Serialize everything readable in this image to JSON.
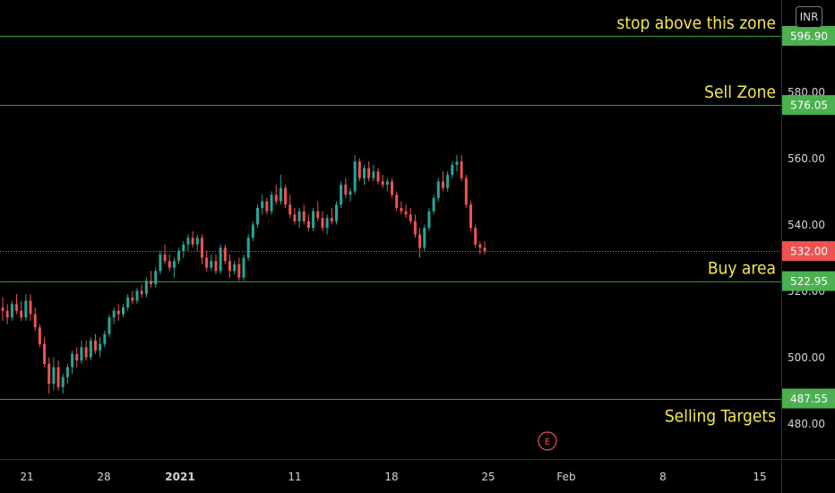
{
  "chart_data": {
    "type": "candlestick",
    "currency": "INR",
    "y_ticks": [
      480,
      500,
      520,
      540,
      560,
      580
    ],
    "y_tick_labels": [
      "480.00",
      "500.00",
      "520.00",
      "540.00",
      "560.00",
      "580.00"
    ],
    "x_ticks": [
      {
        "label": "21",
        "bold": false
      },
      {
        "label": "28",
        "bold": false
      },
      {
        "label": "2021",
        "bold": true
      },
      {
        "label": "11",
        "bold": false
      },
      {
        "label": "18",
        "bold": false
      },
      {
        "label": "25",
        "bold": false
      },
      {
        "label": "Feb",
        "bold": false
      },
      {
        "label": "8",
        "bold": false
      },
      {
        "label": "15",
        "bold": false
      }
    ],
    "last_price": {
      "value": 532.0,
      "label": "532.00",
      "color": "#ef5350"
    },
    "levels": [
      {
        "value": 596.9,
        "label": "596.90",
        "annotation": "stop above this zone"
      },
      {
        "value": 576.05,
        "label": "576.05",
        "annotation": "Sell Zone"
      },
      {
        "value": 522.95,
        "label": "522.95",
        "annotation": "Buy area"
      },
      {
        "value": 487.55,
        "label": "487.55",
        "annotation": "Selling Targets"
      }
    ],
    "level_line_color": "#4caf50",
    "badge_color": "#4caf50",
    "annotation_color": "#f5e94a",
    "up_color": "#26a69a",
    "down_color": "#ef5350",
    "event_marker": "E",
    "candles": [
      {
        "o": 515,
        "h": 518,
        "l": 511,
        "c": 514
      },
      {
        "o": 514,
        "h": 516,
        "l": 510,
        "c": 512
      },
      {
        "o": 512,
        "h": 517,
        "l": 511,
        "c": 516
      },
      {
        "o": 516,
        "h": 519,
        "l": 513,
        "c": 514
      },
      {
        "o": 514,
        "h": 517,
        "l": 511,
        "c": 512
      },
      {
        "o": 512,
        "h": 519,
        "l": 511,
        "c": 517
      },
      {
        "o": 517,
        "h": 519,
        "l": 511,
        "c": 513
      },
      {
        "o": 513,
        "h": 515,
        "l": 508,
        "c": 509
      },
      {
        "o": 509,
        "h": 510,
        "l": 503,
        "c": 504
      },
      {
        "o": 504,
        "h": 506,
        "l": 497,
        "c": 498
      },
      {
        "o": 498,
        "h": 500,
        "l": 489,
        "c": 492
      },
      {
        "o": 492,
        "h": 500,
        "l": 490,
        "c": 497
      },
      {
        "o": 497,
        "h": 499,
        "l": 490,
        "c": 491
      },
      {
        "o": 491,
        "h": 495,
        "l": 489,
        "c": 494
      },
      {
        "o": 494,
        "h": 498,
        "l": 492,
        "c": 497
      },
      {
        "o": 497,
        "h": 502,
        "l": 495,
        "c": 501
      },
      {
        "o": 501,
        "h": 503,
        "l": 497,
        "c": 499
      },
      {
        "o": 499,
        "h": 505,
        "l": 498,
        "c": 503
      },
      {
        "o": 503,
        "h": 505,
        "l": 499,
        "c": 500
      },
      {
        "o": 500,
        "h": 506,
        "l": 499,
        "c": 505
      },
      {
        "o": 505,
        "h": 507,
        "l": 501,
        "c": 502
      },
      {
        "o": 502,
        "h": 506,
        "l": 500,
        "c": 504
      },
      {
        "o": 504,
        "h": 508,
        "l": 503,
        "c": 507
      },
      {
        "o": 507,
        "h": 513,
        "l": 506,
        "c": 512
      },
      {
        "o": 512,
        "h": 515,
        "l": 510,
        "c": 514
      },
      {
        "o": 514,
        "h": 516,
        "l": 511,
        "c": 513
      },
      {
        "o": 513,
        "h": 516,
        "l": 512,
        "c": 515
      },
      {
        "o": 515,
        "h": 519,
        "l": 514,
        "c": 518
      },
      {
        "o": 518,
        "h": 520,
        "l": 516,
        "c": 517
      },
      {
        "o": 517,
        "h": 521,
        "l": 516,
        "c": 520
      },
      {
        "o": 520,
        "h": 522,
        "l": 518,
        "c": 519
      },
      {
        "o": 519,
        "h": 524,
        "l": 518,
        "c": 523
      },
      {
        "o": 523,
        "h": 526,
        "l": 521,
        "c": 522
      },
      {
        "o": 522,
        "h": 527,
        "l": 521,
        "c": 526
      },
      {
        "o": 526,
        "h": 532,
        "l": 525,
        "c": 531
      },
      {
        "o": 531,
        "h": 534,
        "l": 528,
        "c": 529
      },
      {
        "o": 529,
        "h": 531,
        "l": 526,
        "c": 527
      },
      {
        "o": 527,
        "h": 530,
        "l": 524,
        "c": 529
      },
      {
        "o": 529,
        "h": 533,
        "l": 528,
        "c": 532
      },
      {
        "o": 532,
        "h": 535,
        "l": 530,
        "c": 534
      },
      {
        "o": 534,
        "h": 537,
        "l": 532,
        "c": 536
      },
      {
        "o": 536,
        "h": 538,
        "l": 533,
        "c": 534
      },
      {
        "o": 534,
        "h": 537,
        "l": 532,
        "c": 536
      },
      {
        "o": 536,
        "h": 537,
        "l": 528,
        "c": 530
      },
      {
        "o": 530,
        "h": 532,
        "l": 526,
        "c": 527
      },
      {
        "o": 527,
        "h": 531,
        "l": 526,
        "c": 529
      },
      {
        "o": 529,
        "h": 531,
        "l": 525,
        "c": 526
      },
      {
        "o": 526,
        "h": 534,
        "l": 525,
        "c": 533
      },
      {
        "o": 533,
        "h": 534,
        "l": 528,
        "c": 529
      },
      {
        "o": 529,
        "h": 531,
        "l": 524,
        "c": 526
      },
      {
        "o": 526,
        "h": 529,
        "l": 525,
        "c": 528
      },
      {
        "o": 528,
        "h": 530,
        "l": 523,
        "c": 524
      },
      {
        "o": 524,
        "h": 531,
        "l": 523,
        "c": 530
      },
      {
        "o": 530,
        "h": 537,
        "l": 529,
        "c": 536
      },
      {
        "o": 536,
        "h": 541,
        "l": 535,
        "c": 540
      },
      {
        "o": 540,
        "h": 546,
        "l": 539,
        "c": 545
      },
      {
        "o": 545,
        "h": 549,
        "l": 543,
        "c": 547
      },
      {
        "o": 547,
        "h": 548,
        "l": 543,
        "c": 544
      },
      {
        "o": 544,
        "h": 550,
        "l": 543,
        "c": 549
      },
      {
        "o": 549,
        "h": 552,
        "l": 546,
        "c": 547
      },
      {
        "o": 547,
        "h": 555,
        "l": 546,
        "c": 551
      },
      {
        "o": 551,
        "h": 552,
        "l": 545,
        "c": 546
      },
      {
        "o": 546,
        "h": 549,
        "l": 542,
        "c": 543
      },
      {
        "o": 543,
        "h": 545,
        "l": 540,
        "c": 541
      },
      {
        "o": 541,
        "h": 545,
        "l": 539,
        "c": 544
      },
      {
        "o": 544,
        "h": 546,
        "l": 540,
        "c": 541
      },
      {
        "o": 541,
        "h": 543,
        "l": 538,
        "c": 539
      },
      {
        "o": 539,
        "h": 545,
        "l": 538,
        "c": 544
      },
      {
        "o": 544,
        "h": 547,
        "l": 541,
        "c": 542
      },
      {
        "o": 542,
        "h": 544,
        "l": 538,
        "c": 539
      },
      {
        "o": 539,
        "h": 543,
        "l": 537,
        "c": 542
      },
      {
        "o": 542,
        "h": 545,
        "l": 540,
        "c": 541
      },
      {
        "o": 541,
        "h": 547,
        "l": 540,
        "c": 546
      },
      {
        "o": 546,
        "h": 553,
        "l": 545,
        "c": 552
      },
      {
        "o": 552,
        "h": 554,
        "l": 548,
        "c": 549
      },
      {
        "o": 549,
        "h": 551,
        "l": 547,
        "c": 550
      },
      {
        "o": 550,
        "h": 561,
        "l": 549,
        "c": 559
      },
      {
        "o": 559,
        "h": 560,
        "l": 553,
        "c": 554
      },
      {
        "o": 554,
        "h": 558,
        "l": 552,
        "c": 557
      },
      {
        "o": 557,
        "h": 559,
        "l": 553,
        "c": 554
      },
      {
        "o": 554,
        "h": 558,
        "l": 553,
        "c": 556
      },
      {
        "o": 556,
        "h": 557,
        "l": 552,
        "c": 553
      },
      {
        "o": 553,
        "h": 555,
        "l": 551,
        "c": 552
      },
      {
        "o": 552,
        "h": 554,
        "l": 550,
        "c": 553
      },
      {
        "o": 553,
        "h": 554,
        "l": 548,
        "c": 549
      },
      {
        "o": 549,
        "h": 550,
        "l": 544,
        "c": 545
      },
      {
        "o": 545,
        "h": 547,
        "l": 543,
        "c": 544
      },
      {
        "o": 544,
        "h": 546,
        "l": 542,
        "c": 543
      },
      {
        "o": 543,
        "h": 545,
        "l": 540,
        "c": 541
      },
      {
        "o": 541,
        "h": 543,
        "l": 536,
        "c": 537
      },
      {
        "o": 537,
        "h": 539,
        "l": 530,
        "c": 533
      },
      {
        "o": 533,
        "h": 540,
        "l": 532,
        "c": 539
      },
      {
        "o": 539,
        "h": 545,
        "l": 538,
        "c": 544
      },
      {
        "o": 544,
        "h": 549,
        "l": 543,
        "c": 548
      },
      {
        "o": 548,
        "h": 554,
        "l": 547,
        "c": 553
      },
      {
        "o": 553,
        "h": 556,
        "l": 550,
        "c": 551
      },
      {
        "o": 551,
        "h": 556,
        "l": 550,
        "c": 555
      },
      {
        "o": 555,
        "h": 559,
        "l": 554,
        "c": 558
      },
      {
        "o": 558,
        "h": 561,
        "l": 556,
        "c": 559
      },
      {
        "o": 559,
        "h": 561,
        "l": 553,
        "c": 554
      },
      {
        "o": 554,
        "h": 555,
        "l": 545,
        "c": 546
      },
      {
        "o": 546,
        "h": 547,
        "l": 538,
        "c": 539
      },
      {
        "o": 539,
        "h": 540,
        "l": 533,
        "c": 534
      },
      {
        "o": 534,
        "h": 535,
        "l": 531,
        "c": 533
      },
      {
        "o": 533,
        "h": 535,
        "l": 531,
        "c": 532
      }
    ]
  }
}
